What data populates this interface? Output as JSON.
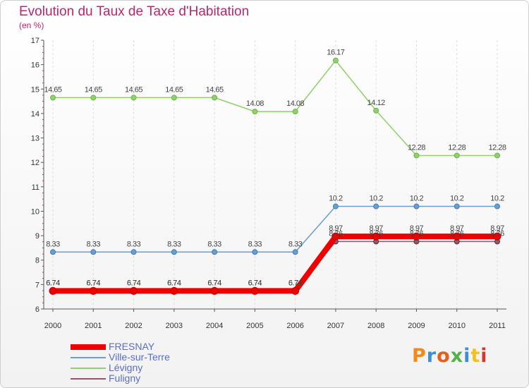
{
  "chart_data": {
    "type": "line",
    "title": "Evolution du Taux de Taxe d'Habitation",
    "ylabel": "(en %)",
    "xlabel": "",
    "x": [
      "2000",
      "2001",
      "2002",
      "2003",
      "2004",
      "2005",
      "2006",
      "2007",
      "2008",
      "2009",
      "2010",
      "2011"
    ],
    "ylim": [
      6,
      17
    ],
    "yticks": [
      6,
      7,
      8,
      9,
      10,
      11,
      12,
      13,
      14,
      15,
      16,
      17
    ],
    "series": [
      {
        "name": "FRESNAY",
        "color": "#ee0000",
        "values": [
          6.74,
          6.74,
          6.74,
          6.74,
          6.74,
          6.74,
          6.74,
          8.97,
          8.97,
          8.97,
          8.97,
          8.97
        ],
        "labels": [
          "6.74",
          "6.74",
          "6.74",
          "6.74",
          "6.74",
          "6.74",
          "6.74",
          "8.97",
          "8.97",
          "8.97",
          "8.97",
          "8.97"
        ]
      },
      {
        "name": "Ville-sur-Terre",
        "color": "#6a9dd0",
        "values": [
          8.33,
          8.33,
          8.33,
          8.33,
          8.33,
          8.33,
          8.33,
          10.2,
          10.2,
          10.2,
          10.2,
          10.2
        ],
        "labels": [
          "8.33",
          "8.33",
          "8.33",
          "8.33",
          "8.33",
          "8.33",
          "8.33",
          "10.2",
          "10.2",
          "10.2",
          "10.2",
          "10.2"
        ]
      },
      {
        "name": "Lévigny",
        "color": "#8fd16a",
        "values": [
          14.65,
          14.65,
          14.65,
          14.65,
          14.65,
          14.08,
          14.08,
          16.17,
          14.12,
          12.28,
          12.28,
          12.28
        ],
        "labels": [
          "14.65",
          "14.65",
          "14.65",
          "14.65",
          "14.65",
          "14.08",
          "14.08",
          "16.17",
          "14.12",
          "12.28",
          "12.28",
          "12.28"
        ]
      },
      {
        "name": "Fuligny",
        "color": "#8a5a6a",
        "values": [
          6.74,
          6.74,
          6.74,
          6.74,
          6.74,
          6.74,
          6.74,
          8.76,
          8.76,
          8.76,
          8.76,
          8.76
        ],
        "labels": [
          "6.74",
          "6.74",
          "6.74",
          "6.74",
          "6.74",
          "6.74",
          "6.74",
          "8.76",
          "8.76",
          "8.76",
          "8.76",
          "8.76"
        ]
      }
    ]
  },
  "logo": {
    "text": "Proxiti",
    "colors": [
      "#f28a1b",
      "#3b8fd8",
      "#e85c1c",
      "#53b34a",
      "#3b8fd8",
      "#f2c21b",
      "#d8362b"
    ]
  }
}
